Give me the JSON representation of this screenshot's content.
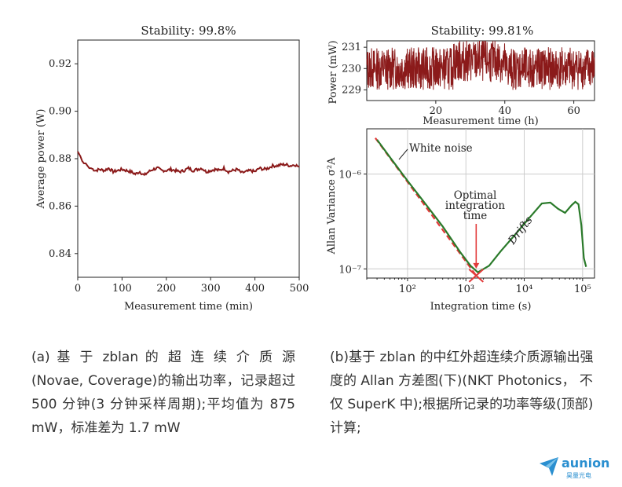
{
  "chart_data": [
    {
      "type": "line",
      "title": "Stability: 99.8%",
      "xlabel": "Measurement time (min)",
      "ylabel": "Average power (W)",
      "xlim": [
        0,
        500
      ],
      "ylim": [
        0.83,
        0.93
      ],
      "xticks": [
        "0",
        "100",
        "200",
        "300",
        "400",
        "500"
      ],
      "yticks": [
        "0.84",
        "0.86",
        "0.88",
        "0.90",
        "0.92"
      ],
      "series": [
        {
          "color": "#8b1a1a",
          "x": [
            0,
            3,
            6,
            10,
            14,
            18,
            22,
            26,
            30,
            40,
            50,
            60,
            70,
            80,
            90,
            100,
            110,
            120,
            130,
            140,
            150,
            160,
            170,
            180,
            190,
            200,
            210,
            220,
            230,
            240,
            250,
            260,
            270,
            280,
            290,
            300,
            310,
            320,
            330,
            340,
            350,
            360,
            370,
            380,
            390,
            400,
            410,
            420,
            430,
            440,
            450,
            460,
            470,
            480,
            490,
            500
          ],
          "y": [
            0.883,
            0.882,
            0.881,
            0.879,
            0.878,
            0.878,
            0.877,
            0.876,
            0.876,
            0.875,
            0.8755,
            0.875,
            0.876,
            0.8745,
            0.875,
            0.8755,
            0.875,
            0.8745,
            0.8735,
            0.8745,
            0.873,
            0.8745,
            0.8755,
            0.876,
            0.875,
            0.875,
            0.8755,
            0.875,
            0.8745,
            0.875,
            0.876,
            0.875,
            0.8755,
            0.876,
            0.8745,
            0.875,
            0.8755,
            0.875,
            0.876,
            0.8745,
            0.875,
            0.8755,
            0.874,
            0.8745,
            0.875,
            0.8745,
            0.876,
            0.8755,
            0.876,
            0.877,
            0.877,
            0.8775,
            0.8775,
            0.877,
            0.8775,
            0.8765
          ]
        }
      ],
      "grid": false,
      "legend": "none"
    },
    {
      "type": "line",
      "title": "Stability: 99.81%",
      "xlabel": "Measurement time (h)",
      "ylabel": "Power (mW)",
      "xlim": [
        0,
        66
      ],
      "ylim": [
        228.5,
        231.3
      ],
      "xticks": [
        "20",
        "40",
        "60"
      ],
      "yticks": [
        "229",
        "230",
        "231"
      ],
      "series": [
        {
          "color": "#8b1a1a",
          "description_points": 900,
          "mean": 230,
          "noise_amplitude": 1.0
        }
      ],
      "grid": false,
      "legend": "none"
    },
    {
      "type": "line",
      "title": "",
      "xlabel": "Integration time (s)",
      "ylabel": "Allan Variance σ²A",
      "xscale": "log",
      "yscale": "log",
      "xlim": [
        20,
        160000
      ],
      "ylim": [
        8e-08,
        3e-06
      ],
      "xticks": [
        "10²",
        "10³",
        "10⁴",
        "10⁵"
      ],
      "yticks": [
        "10⁻⁷",
        "10⁻⁶"
      ],
      "grid": true,
      "legend": "none",
      "series": [
        {
          "color": "#2a7a2a",
          "x": [
            30,
            50,
            100,
            200,
            400,
            800,
            1200,
            1600,
            2500,
            4000,
            7000,
            12000,
            20000,
            28000,
            38000,
            50000,
            65000,
            75000,
            85000,
            95000,
            105000,
            115000
          ],
          "y": [
            2.3e-06,
            1.5e-06,
            8.5e-07,
            4.9e-07,
            2.8e-07,
            1.5e-07,
            1.08e-07,
            9.2e-08,
            1.08e-07,
            1.55e-07,
            2.3e-07,
            3.4e-07,
            4.9e-07,
            5e-07,
            4.3e-07,
            3.9e-07,
            4.7e-07,
            5.1e-07,
            4.8e-07,
            2.9e-07,
            1.3e-07,
            1.05e-07
          ]
        },
        {
          "color": "#e23a3a",
          "style": "dashed",
          "x": [
            28,
            1500
          ],
          "y": [
            2.4e-06,
            8.5e-08
          ]
        }
      ],
      "annotations": [
        {
          "text": "White noise"
        },
        {
          "text": "Optimal"
        },
        {
          "text": "integration"
        },
        {
          "text": "time"
        },
        {
          "text": "Drifts"
        }
      ],
      "optimal_point": {
        "x": 1500,
        "y": 8.5e-08
      }
    }
  ],
  "captions": {
    "a": "(a) 基 于 zblan 的 超 连 续 介 质 源(Novae, Coverage)的输出功率，记录超过 500 分钟(3 分钟采样周期);平均值为 875 mW，标准差为 1.7 mW",
    "b": "(b)基于 zblan 的中红外超连续介质源输出强度的 Allan 方差图(下)(NKT Photonics， 不仅 SuperK 中);根据所记录的功率等级(顶部)计算;"
  },
  "logo": {
    "name": "aunion",
    "sub": "昊量光电",
    "color": "#2a8fd0"
  }
}
